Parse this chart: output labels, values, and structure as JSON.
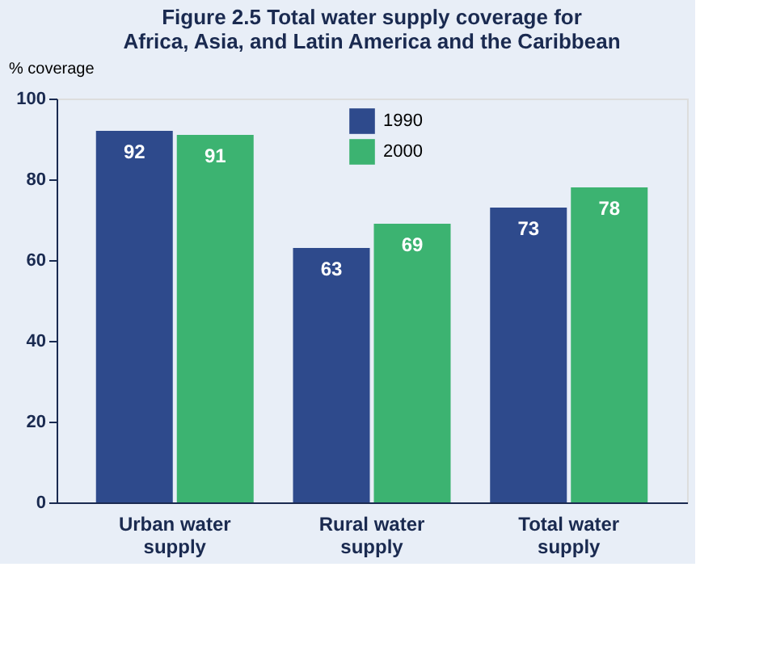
{
  "chart_data": {
    "type": "bar",
    "title": "Figure 2.5   Total water supply coverage for Africa, Asia, and Latin America and the Caribbean",
    "ylabel": "% coverage",
    "categories": [
      "Urban water supply",
      "Rural water supply",
      "Total water supply"
    ],
    "series": [
      {
        "name": "1990",
        "color": "#2e4a8c",
        "values": [
          92,
          63,
          73
        ]
      },
      {
        "name": "2000",
        "color": "#3cb371",
        "values": [
          91,
          69,
          78
        ]
      }
    ],
    "ylim": [
      0,
      100
    ],
    "yticks": [
      0,
      20,
      40,
      60,
      80,
      100
    ],
    "data_labels": true,
    "legend": "top",
    "grid": false
  }
}
